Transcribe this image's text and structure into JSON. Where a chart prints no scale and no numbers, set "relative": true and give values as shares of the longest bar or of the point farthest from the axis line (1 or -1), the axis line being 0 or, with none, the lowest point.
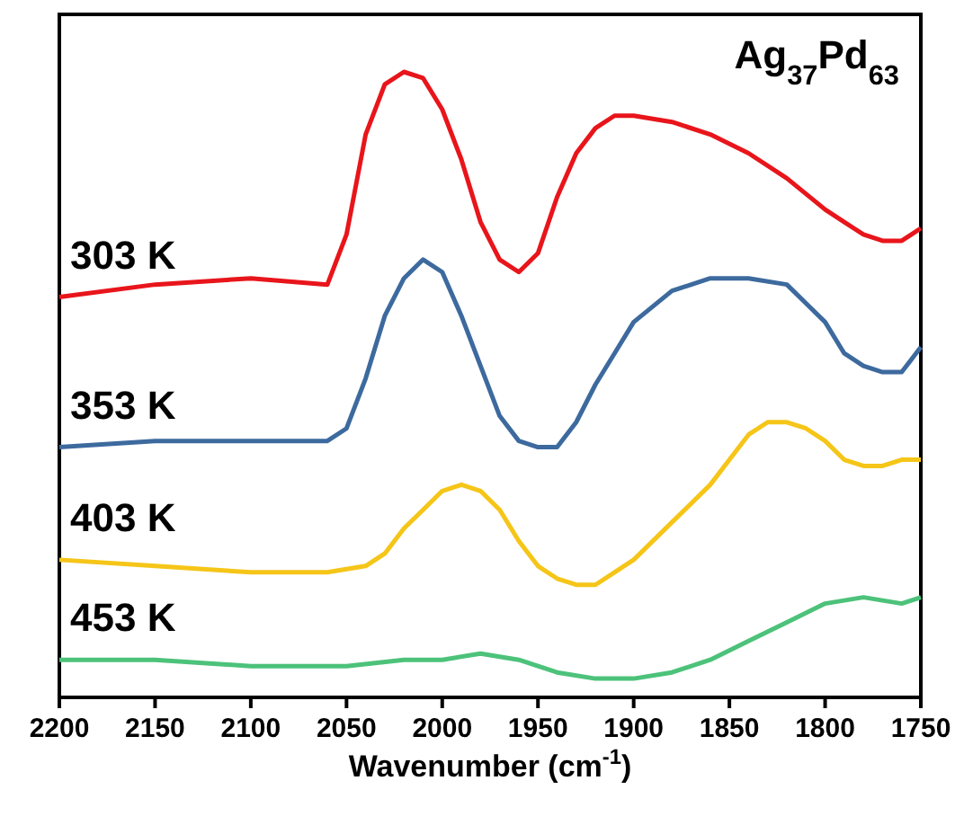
{
  "chart_data": {
    "type": "line",
    "title": "Ag$_{37}$Pd$_{63}$",
    "xlabel": "Wavenumber (cm$^{-1}$)",
    "relative": true,
    "xlim": [
      2200,
      1750
    ],
    "xticks": [
      2200,
      2150,
      2100,
      2050,
      2000,
      1950,
      1900,
      1850,
      1800,
      1750
    ],
    "grid": false,
    "legend": false,
    "marker": "none",
    "line_style": "solid",
    "series": [
      {
        "name": "303 K",
        "color": "#e8151b",
        "x": [
          2200,
          2150,
          2100,
          2060,
          2050,
          2040,
          2030,
          2020,
          2010,
          2000,
          1990,
          1980,
          1970,
          1960,
          1950,
          1940,
          1930,
          1920,
          1910,
          1900,
          1880,
          1860,
          1840,
          1820,
          1800,
          1790,
          1780,
          1770,
          1760,
          1750
        ],
        "values": [
          0.64,
          0.66,
          0.67,
          0.66,
          0.74,
          0.9,
          0.98,
          1.0,
          0.99,
          0.94,
          0.86,
          0.76,
          0.7,
          0.68,
          0.71,
          0.8,
          0.87,
          0.91,
          0.93,
          0.93,
          0.92,
          0.9,
          0.87,
          0.83,
          0.78,
          0.76,
          0.74,
          0.73,
          0.73,
          0.75
        ]
      },
      {
        "name": "353 K",
        "color": "#3d6a9e",
        "x": [
          2200,
          2150,
          2100,
          2070,
          2060,
          2050,
          2040,
          2030,
          2020,
          2010,
          2000,
          1990,
          1980,
          1970,
          1960,
          1950,
          1940,
          1930,
          1920,
          1910,
          1900,
          1880,
          1860,
          1840,
          1820,
          1810,
          1800,
          1790,
          1780,
          1770,
          1760,
          1750
        ],
        "values": [
          0.4,
          0.41,
          0.41,
          0.41,
          0.41,
          0.43,
          0.51,
          0.61,
          0.67,
          0.7,
          0.68,
          0.61,
          0.53,
          0.45,
          0.41,
          0.4,
          0.4,
          0.44,
          0.5,
          0.55,
          0.6,
          0.65,
          0.67,
          0.67,
          0.66,
          0.63,
          0.6,
          0.55,
          0.53,
          0.52,
          0.52,
          0.56
        ]
      },
      {
        "name": "403 K",
        "color": "#f5c518",
        "x": [
          2200,
          2150,
          2100,
          2060,
          2040,
          2030,
          2020,
          2010,
          2000,
          1990,
          1980,
          1970,
          1960,
          1950,
          1940,
          1930,
          1920,
          1910,
          1900,
          1880,
          1860,
          1850,
          1840,
          1830,
          1820,
          1810,
          1800,
          1790,
          1780,
          1770,
          1760,
          1750
        ],
        "values": [
          0.22,
          0.21,
          0.2,
          0.2,
          0.21,
          0.23,
          0.27,
          0.3,
          0.33,
          0.34,
          0.33,
          0.3,
          0.25,
          0.21,
          0.19,
          0.18,
          0.18,
          0.2,
          0.22,
          0.28,
          0.34,
          0.38,
          0.42,
          0.44,
          0.44,
          0.43,
          0.41,
          0.38,
          0.37,
          0.37,
          0.38,
          0.38
        ]
      },
      {
        "name": "453 K",
        "color": "#4cc27a",
        "x": [
          2200,
          2150,
          2100,
          2050,
          2020,
          2000,
          1980,
          1960,
          1950,
          1940,
          1920,
          1900,
          1880,
          1860,
          1840,
          1820,
          1800,
          1780,
          1760,
          1750
        ],
        "values": [
          0.06,
          0.06,
          0.05,
          0.05,
          0.06,
          0.06,
          0.07,
          0.06,
          0.05,
          0.04,
          0.03,
          0.03,
          0.04,
          0.06,
          0.09,
          0.12,
          0.15,
          0.16,
          0.15,
          0.16
        ]
      }
    ]
  }
}
